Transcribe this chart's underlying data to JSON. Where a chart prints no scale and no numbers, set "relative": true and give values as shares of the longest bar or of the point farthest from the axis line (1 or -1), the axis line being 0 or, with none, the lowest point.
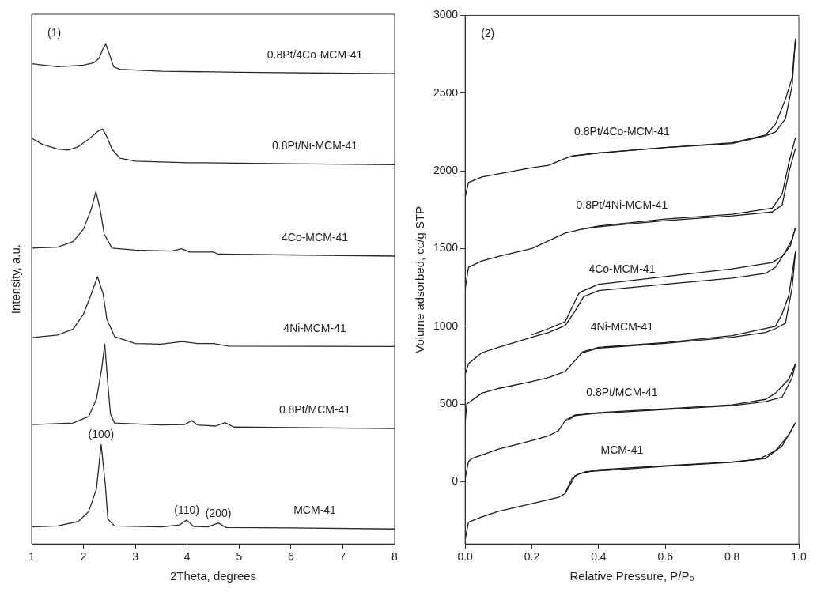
{
  "chart_data": [
    {
      "type": "line",
      "xlabel": "2Theta, degrees",
      "ylabel": "Intensity, a.u.",
      "relative": true,
      "xlim": [
        1,
        8
      ],
      "xticks": [
        1,
        2,
        3,
        4,
        5,
        6,
        7,
        8
      ],
      "tick_labels": "x",
      "grid": false,
      "legend": false,
      "marker": "none",
      "line_style": "solid",
      "annotations": [
        "(1)",
        {
          "text": "(100)",
          "x": 2.34,
          "y": 0.199
        },
        {
          "text": "(110)",
          "x": 3.99,
          "y": 0.048
        },
        {
          "text": "(200)",
          "x": 4.6,
          "y": 0.042
        }
      ],
      "series": [
        {
          "name": "MCM-41",
          "color": "#2a2a2a",
          "x": [
            1,
            1.5,
            1.9,
            2.1,
            2.25,
            2.34,
            2.42,
            2.47,
            2.6,
            3.5,
            3.85,
            3.99,
            4.12,
            4.4,
            4.6,
            4.75,
            6,
            8
          ],
          "values": [
            0.034,
            0.036,
            0.045,
            0.065,
            0.11,
            0.199,
            0.12,
            0.05,
            0.036,
            0.034,
            0.038,
            0.048,
            0.035,
            0.034,
            0.042,
            0.033,
            0.032,
            0.03
          ]
        },
        {
          "name": "0.8Pt/MCM-41",
          "color": "#2a2a2a",
          "x": [
            1,
            1.8,
            2.1,
            2.25,
            2.35,
            2.41,
            2.47,
            2.52,
            2.6,
            3.5,
            3.95,
            4.09,
            4.2,
            4.55,
            4.73,
            4.9,
            8
          ],
          "values": [
            0.239,
            0.242,
            0.255,
            0.29,
            0.35,
            0.4,
            0.32,
            0.26,
            0.242,
            0.238,
            0.239,
            0.247,
            0.238,
            0.236,
            0.243,
            0.234,
            0.231
          ]
        },
        {
          "name": "4Ni-MCM-41",
          "color": "#2a2a2a",
          "x": [
            1,
            1.5,
            1.8,
            2,
            2.15,
            2.27,
            2.38,
            2.45,
            2.6,
            3,
            3.5,
            3.9,
            4.2,
            4.5,
            4.8,
            8
          ],
          "values": [
            0.413,
            0.418,
            0.43,
            0.46,
            0.5,
            0.535,
            0.5,
            0.45,
            0.415,
            0.401,
            0.4,
            0.405,
            0.401,
            0.401,
            0.396,
            0.395
          ]
        },
        {
          "name": "4Co-MCM-41",
          "color": "#2a2a2a",
          "x": [
            1,
            1.5,
            1.8,
            2,
            2.15,
            2.24,
            2.32,
            2.4,
            2.55,
            3,
            3.7,
            3.89,
            4.05,
            4.5,
            4.6,
            8
          ],
          "values": [
            0.592,
            0.594,
            0.605,
            0.63,
            0.67,
            0.705,
            0.67,
            0.62,
            0.592,
            0.588,
            0.586,
            0.591,
            0.584,
            0.584,
            0.58,
            0.576
          ]
        },
        {
          "name": "0.8Pt/Ni-MCM-41",
          "color": "#2a2a2a",
          "x": [
            1,
            1.2,
            1.5,
            1.7,
            1.9,
            2.1,
            2.28,
            2.37,
            2.45,
            2.55,
            2.7,
            3,
            4,
            6,
            8
          ],
          "values": [
            0.812,
            0.8,
            0.79,
            0.788,
            0.795,
            0.81,
            0.826,
            0.83,
            0.815,
            0.79,
            0.772,
            0.766,
            0.763,
            0.761,
            0.759
          ]
        },
        {
          "name": "0.8Pt/4Co-MCM-41",
          "color": "#2a2a2a",
          "x": [
            1,
            1.5,
            2,
            2.2,
            2.3,
            2.37,
            2.43,
            2.5,
            2.58,
            2.7,
            3.5,
            5,
            8
          ],
          "values": [
            0.961,
            0.955,
            0.958,
            0.963,
            0.972,
            0.99,
            1,
            0.98,
            0.955,
            0.95,
            0.946,
            0.944,
            0.941
          ]
        }
      ]
    },
    {
      "type": "line",
      "xlabel": "Relative Pressure, P/P₀",
      "ylabel": "Volume adsorbed, cc/g STP",
      "xlim": [
        0,
        1
      ],
      "ylim": [
        -400,
        3000
      ],
      "xticks": [
        {
          "value": 0,
          "label": "0.0"
        },
        0.2,
        0.4,
        0.6,
        0.8,
        {
          "value": 1,
          "label": "1.0"
        }
      ],
      "yticks": [
        0,
        500,
        1000,
        1500,
        2000,
        2500,
        3000
      ],
      "grid": false,
      "legend": false,
      "marker": "none",
      "line_style": "solid",
      "annotations": [
        "(2)"
      ],
      "series": [
        {
          "name": "MCM-41",
          "color": "#1a1a1a",
          "x": [
            0,
            0.01,
            0.05,
            0.1,
            0.2,
            0.28,
            0.3,
            0.33,
            0.36,
            0.5,
            0.6,
            0.8,
            0.9,
            0.95,
            0.99
          ],
          "values": [
            -370,
            -260,
            -225,
            -190,
            -140,
            -100,
            -75,
            40,
            65,
            85,
            100,
            125,
            150,
            230,
            380
          ]
        },
        {
          "color": "#1a1a1a",
          "x": [
            0.99,
            0.97,
            0.93,
            0.88,
            0.8,
            0.6,
            0.4,
            0.34,
            0.32,
            0.3
          ],
          "values": [
            380,
            300,
            200,
            145,
            128,
            103,
            78,
            50,
            20,
            -70
          ]
        },
        {
          "name": "0.8Pt/MCM-41",
          "color": "#1a1a1a",
          "x": [
            0,
            0.01,
            0.02,
            0.1,
            0.2,
            0.25,
            0.28,
            0.3,
            0.33,
            0.4,
            0.6,
            0.8,
            0.9,
            0.95,
            0.98,
            0.99
          ],
          "values": [
            20,
            130,
            150,
            210,
            265,
            295,
            330,
            395,
            430,
            440,
            465,
            490,
            515,
            545,
            670,
            760
          ]
        },
        {
          "color": "#1a1a1a",
          "x": [
            0.99,
            0.97,
            0.93,
            0.9,
            0.8,
            0.6,
            0.4,
            0.33,
            0.31
          ],
          "values": [
            760,
            660,
            570,
            530,
            495,
            470,
            445,
            425,
            400
          ]
        },
        {
          "name": "4Ni-MCM-41",
          "color": "#1a1a1a",
          "x": [
            0,
            0.005,
            0.05,
            0.1,
            0.2,
            0.25,
            0.3,
            0.35,
            0.4,
            0.6,
            0.8,
            0.9,
            0.93,
            0.96,
            0.98,
            0.99
          ],
          "values": [
            380,
            500,
            570,
            600,
            645,
            670,
            710,
            830,
            860,
            890,
            930,
            960,
            985,
            1020,
            1250,
            1480
          ]
        },
        {
          "color": "#1a1a1a",
          "x": [
            0.99,
            0.97,
            0.95,
            0.93,
            0.8,
            0.6,
            0.4,
            0.35
          ],
          "values": [
            1480,
            1200,
            1080,
            1000,
            940,
            895,
            865,
            835
          ]
        },
        {
          "name": "4Co-MCM-41",
          "color": "#1a1a1a",
          "x": [
            0,
            0.01,
            0.05,
            0.1,
            0.2,
            0.25,
            0.3,
            0.33,
            0.355,
            0.4,
            0.6,
            0.8,
            0.9,
            0.93,
            0.96,
            0.98,
            0.99
          ],
          "values": [
            690,
            760,
            830,
            865,
            930,
            960,
            1005,
            1100,
            1190,
            1230,
            1270,
            1310,
            1340,
            1380,
            1480,
            1560,
            1635
          ]
        },
        {
          "color": "#1a1a1a",
          "x": [
            0.99,
            0.975,
            0.95,
            0.92,
            0.8,
            0.6,
            0.4,
            0.35,
            0.34,
            0.3,
            0.25,
            0.2
          ],
          "values": [
            1635,
            1520,
            1450,
            1410,
            1370,
            1320,
            1270,
            1225,
            1210,
            1030,
            985,
            945
          ]
        },
        {
          "name": "0.8Pt/4Ni-MCM-41",
          "color": "#1a1a1a",
          "x": [
            0,
            0.01,
            0.05,
            0.1,
            0.2,
            0.25,
            0.3,
            0.35,
            0.4,
            0.6,
            0.8,
            0.92,
            0.95,
            0.97,
            0.99
          ],
          "values": [
            1240,
            1380,
            1420,
            1450,
            1500,
            1550,
            1600,
            1625,
            1640,
            1680,
            1710,
            1735,
            1780,
            1990,
            2145
          ]
        },
        {
          "color": "#1a1a1a",
          "x": [
            0.99,
            0.97,
            0.95,
            0.92,
            0.8,
            0.6,
            0.4,
            0.35
          ],
          "values": [
            2215,
            2050,
            1850,
            1760,
            1720,
            1690,
            1645,
            1625
          ]
        },
        {
          "name": "0.8Pt/4Co-MCM-41",
          "color": "#1a1a1a",
          "x": [
            0,
            0.01,
            0.05,
            0.2,
            0.25,
            0.3,
            0.32,
            0.4,
            0.6,
            0.8,
            0.9,
            0.93,
            0.96,
            0.98,
            0.99
          ],
          "values": [
            1830,
            1925,
            1960,
            2020,
            2035,
            2080,
            2095,
            2115,
            2150,
            2175,
            2225,
            2250,
            2335,
            2550,
            2850
          ]
        },
        {
          "color": "#1a1a1a",
          "x": [
            0.99,
            0.98,
            0.96,
            0.93,
            0.9,
            0.8,
            0.6,
            0.4,
            0.32
          ],
          "values": [
            2850,
            2600,
            2460,
            2300,
            2230,
            2180,
            2150,
            2115,
            2095
          ]
        }
      ]
    }
  ]
}
